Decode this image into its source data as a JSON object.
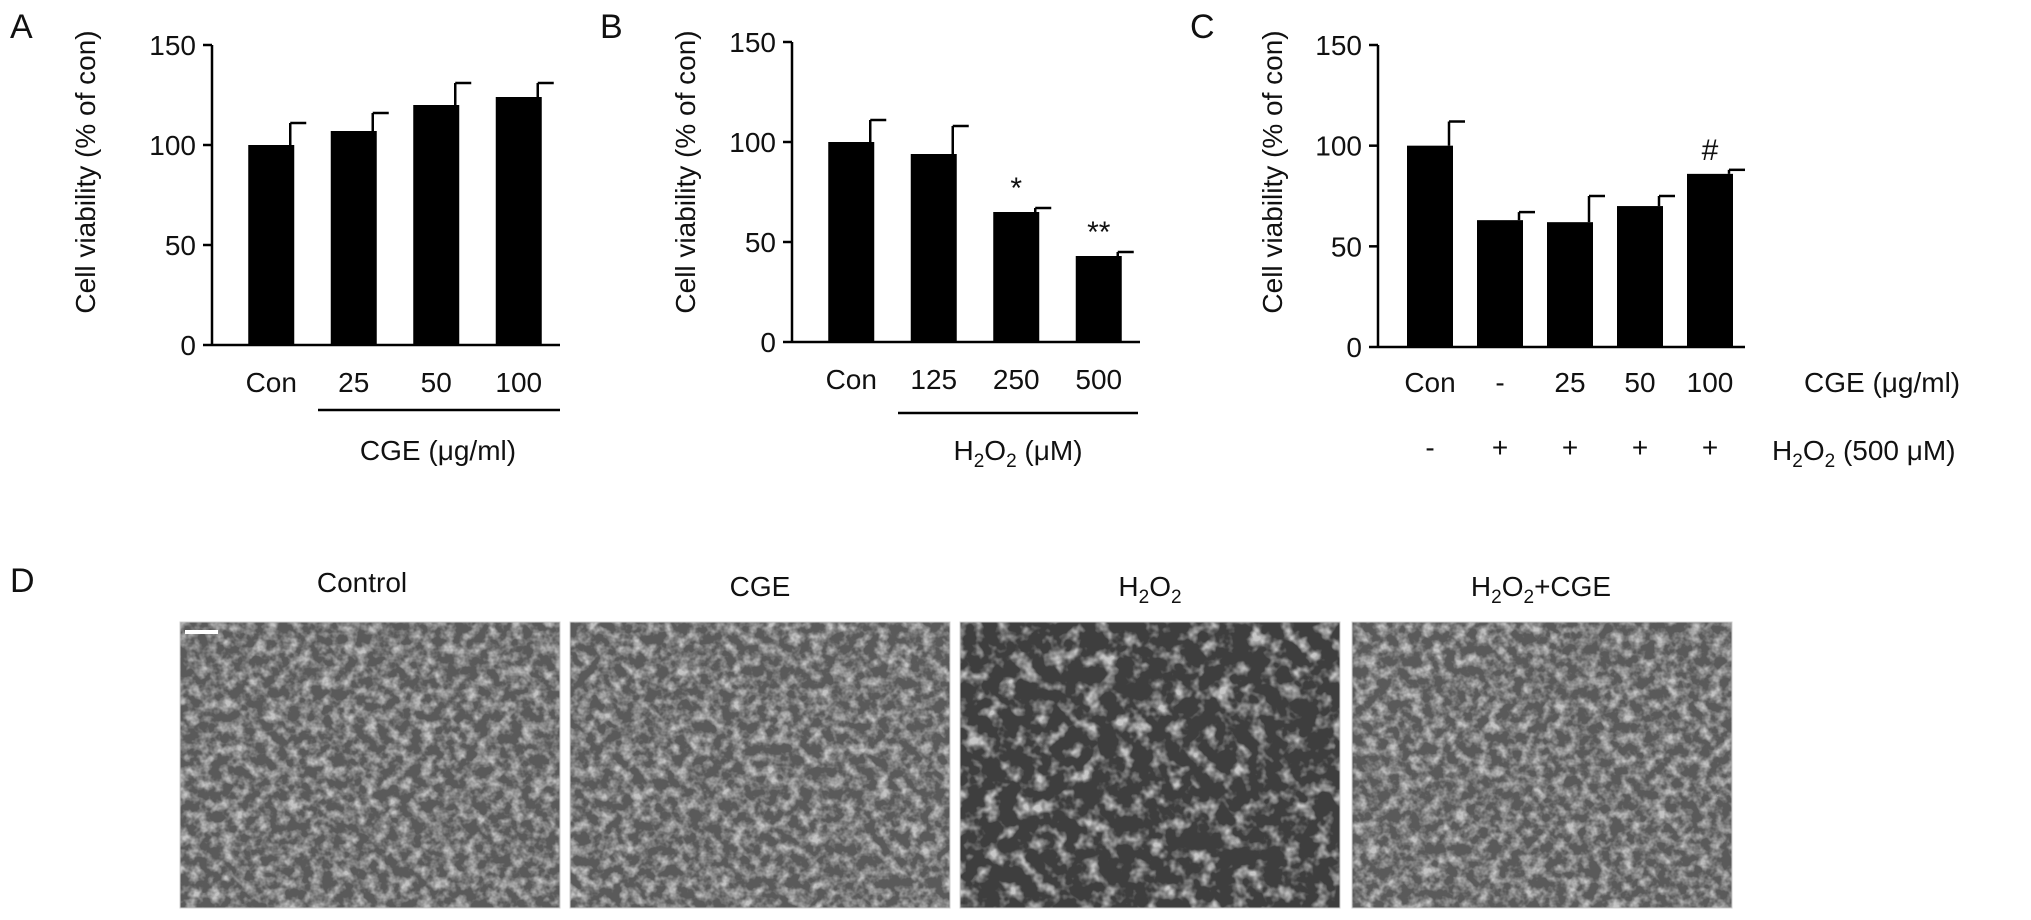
{
  "panels": [
    {
      "letter": "A",
      "ylabel": "Cell viability (% of con)",
      "group_caption": {
        "main": "CGE (",
        "mu": "μ",
        "rest": "g/ml)"
      },
      "chart_data": {
        "type": "bar",
        "categories": [
          "Con",
          "25",
          "50",
          "100"
        ],
        "series": [
          {
            "values": [
              100,
              107,
              120,
              124
            ],
            "errors": [
              11,
              9,
              11,
              7
            ]
          }
        ],
        "ylim": [
          0,
          150
        ],
        "yticks": [
          0,
          50,
          100,
          150
        ],
        "significance": [
          "",
          "",
          "",
          ""
        ]
      }
    },
    {
      "letter": "B",
      "ylabel": "Cell viability (% of con)",
      "group_caption": {
        "main": "H",
        "sub": "2",
        "main2": "O",
        "sub2": "2",
        "rest": " (μM)"
      },
      "chart_data": {
        "type": "bar",
        "categories": [
          "Con",
          "125",
          "250",
          "500"
        ],
        "series": [
          {
            "values": [
              100,
              94,
              65,
              43
            ],
            "errors": [
              11,
              14,
              2,
              2
            ]
          }
        ],
        "ylim": [
          0,
          150
        ],
        "yticks": [
          0,
          50,
          100,
          150
        ],
        "significance": [
          "",
          "",
          "*",
          "**"
        ]
      }
    },
    {
      "letter": "C",
      "ylabel": "Cell viability (% of con)",
      "row_labels": {
        "cge": "CGE (μg/ml)",
        "h2o2": {
          "main": "H",
          "sub": "2",
          "main2": "O",
          "sub2": "2",
          "rest": " (500 μM)"
        }
      },
      "cge_row": [
        "Con",
        "-",
        "25",
        "50",
        "100"
      ],
      "h2o2_row": [
        "-",
        "+",
        "+",
        "+",
        "+"
      ],
      "chart_data": {
        "type": "bar",
        "categories": [
          "Con",
          "-",
          "25",
          "50",
          "100"
        ],
        "series": [
          {
            "values": [
              100,
              63,
              62,
              70,
              86
            ],
            "errors": [
              12,
              4,
              13,
              5,
              2
            ]
          }
        ],
        "ylim": [
          0,
          150
        ],
        "yticks": [
          0,
          50,
          100,
          150
        ],
        "significance": [
          "",
          "",
          "",
          "",
          "#"
        ]
      }
    }
  ],
  "panel_d": {
    "letter": "D",
    "images": [
      {
        "title": "Control",
        "density": "high"
      },
      {
        "title": "CGE",
        "density": "high"
      },
      {
        "title_parts": {
          "main": "H",
          "sub": "2",
          "main2": "O",
          "sub2": "2",
          "rest": ""
        },
        "density": "low"
      },
      {
        "title_parts": {
          "main": "H",
          "sub": "2",
          "main2": "O",
          "sub2": "2",
          "rest": "+CGE"
        },
        "density": "high"
      }
    ]
  }
}
